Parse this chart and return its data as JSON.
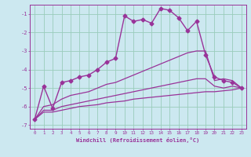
{
  "title": "",
  "xlabel": "Windchill (Refroidissement éolien,°C)",
  "background_color": "#cce8f0",
  "grid_color": "#99ccbb",
  "line_color": "#993399",
  "xlim": [
    -0.5,
    23.5
  ],
  "ylim": [
    -7.2,
    -0.5
  ],
  "yticks": [
    -7,
    -6,
    -5,
    -4,
    -3,
    -2,
    -1
  ],
  "xticks": [
    0,
    1,
    2,
    3,
    4,
    5,
    6,
    7,
    8,
    9,
    10,
    11,
    12,
    13,
    14,
    15,
    16,
    17,
    18,
    19,
    20,
    21,
    22,
    23
  ],
  "series": [
    {
      "x": [
        0,
        1,
        2,
        3,
        4,
        5,
        6,
        7,
        8,
        9,
        10,
        11,
        12,
        13,
        14,
        15,
        16,
        17,
        18,
        19,
        20,
        21,
        22,
        23
      ],
      "y": [
        -6.7,
        -4.9,
        -6.1,
        -4.7,
        -4.6,
        -4.4,
        -4.3,
        -4.0,
        -3.6,
        -3.4,
        -1.1,
        -1.4,
        -1.3,
        -1.5,
        -0.7,
        -0.8,
        -1.2,
        -1.9,
        -1.4,
        -3.2,
        -4.4,
        -4.6,
        -4.7,
        -5.0
      ],
      "marker": "D",
      "markersize": 2.5,
      "linewidth": 1.0
    },
    {
      "x": [
        0,
        1,
        2,
        3,
        4,
        5,
        6,
        7,
        8,
        9,
        10,
        11,
        12,
        13,
        14,
        15,
        16,
        17,
        18,
        19,
        20,
        21,
        22,
        23
      ],
      "y": [
        -6.7,
        -6.0,
        -5.9,
        -5.6,
        -5.4,
        -5.3,
        -5.2,
        -5.0,
        -4.8,
        -4.7,
        -4.5,
        -4.3,
        -4.1,
        -3.9,
        -3.7,
        -3.5,
        -3.3,
        -3.1,
        -3.0,
        -3.0,
        -4.6,
        -4.5,
        -4.6,
        -5.0
      ],
      "marker": null,
      "markersize": 0,
      "linewidth": 0.9
    },
    {
      "x": [
        0,
        1,
        2,
        3,
        4,
        5,
        6,
        7,
        8,
        9,
        10,
        11,
        12,
        13,
        14,
        15,
        16,
        17,
        18,
        19,
        20,
        21,
        22,
        23
      ],
      "y": [
        -6.7,
        -6.2,
        -6.2,
        -6.0,
        -5.9,
        -5.8,
        -5.7,
        -5.6,
        -5.5,
        -5.4,
        -5.3,
        -5.2,
        -5.1,
        -5.0,
        -4.9,
        -4.8,
        -4.7,
        -4.6,
        -4.5,
        -4.5,
        -4.9,
        -5.0,
        -4.9,
        -5.0
      ],
      "marker": null,
      "markersize": 0,
      "linewidth": 0.9
    },
    {
      "x": [
        0,
        1,
        2,
        3,
        4,
        5,
        6,
        7,
        8,
        9,
        10,
        11,
        12,
        13,
        14,
        15,
        16,
        17,
        18,
        19,
        20,
        21,
        22,
        23
      ],
      "y": [
        -6.7,
        -6.3,
        -6.3,
        -6.2,
        -6.1,
        -6.0,
        -5.95,
        -5.9,
        -5.8,
        -5.75,
        -5.7,
        -5.6,
        -5.55,
        -5.5,
        -5.45,
        -5.4,
        -5.35,
        -5.3,
        -5.25,
        -5.2,
        -5.2,
        -5.15,
        -5.1,
        -5.0
      ],
      "marker": null,
      "markersize": 0,
      "linewidth": 0.9
    }
  ]
}
